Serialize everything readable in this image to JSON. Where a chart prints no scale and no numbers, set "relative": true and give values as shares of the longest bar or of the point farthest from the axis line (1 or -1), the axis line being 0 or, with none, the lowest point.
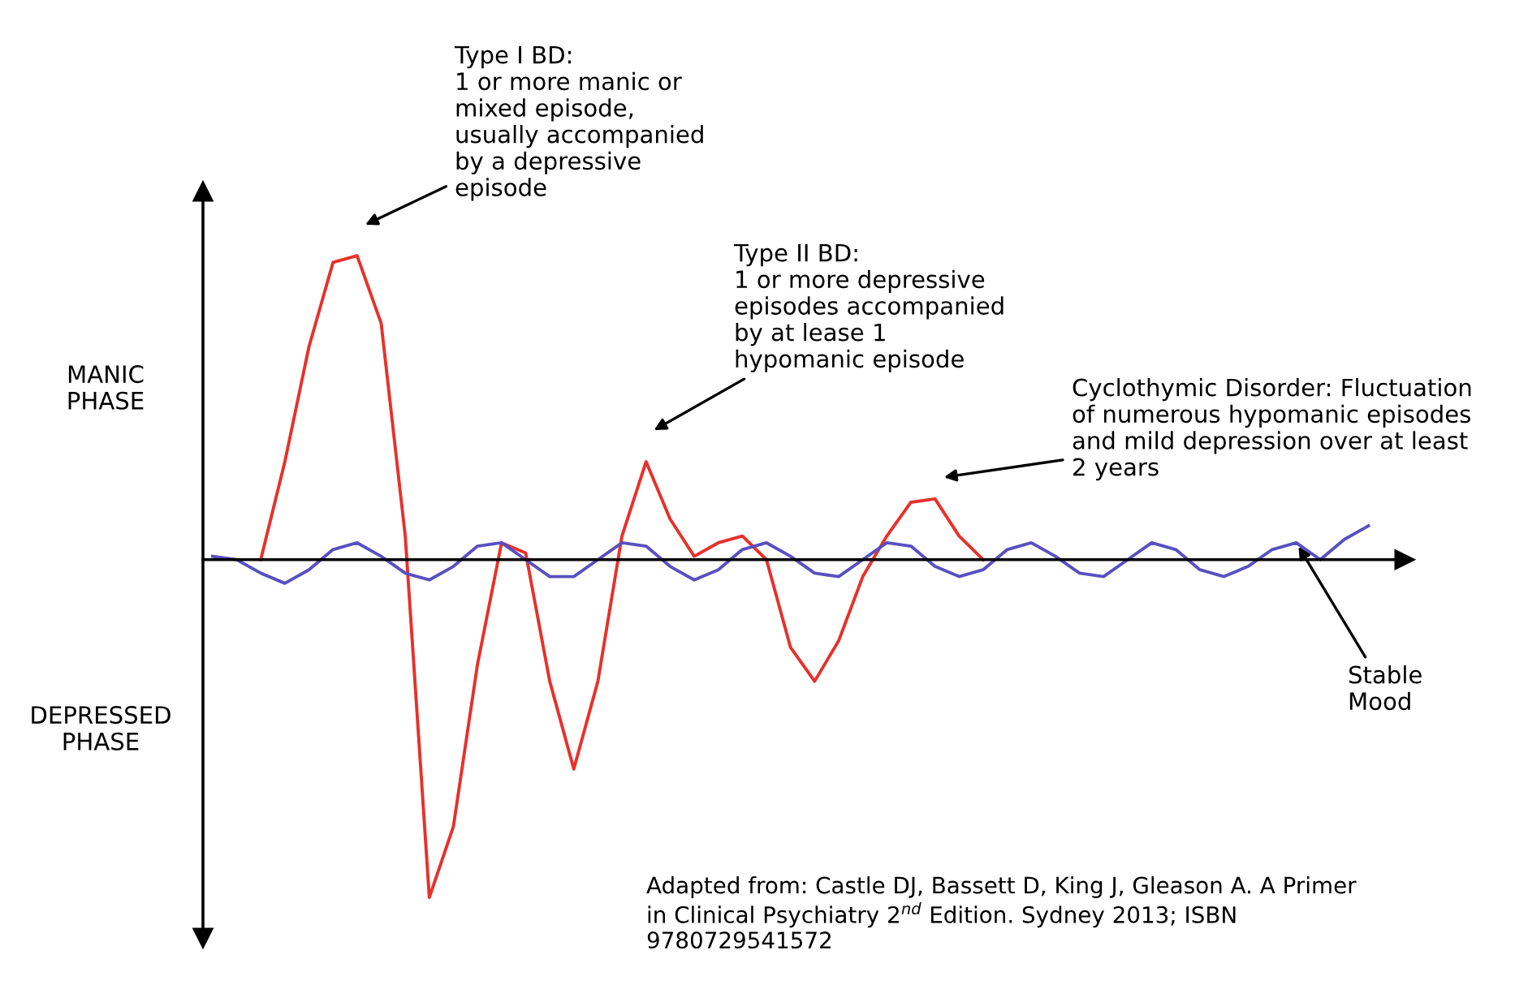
{
  "chart_data": {
    "type": "line",
    "relative": true,
    "grid": false,
    "legend": false,
    "marker": "none",
    "line_style": "solid",
    "categories": [
      null,
      null,
      null,
      null,
      null,
      null,
      null,
      null,
      null,
      null,
      null,
      null,
      null,
      null,
      null,
      null,
      null,
      null,
      null,
      null,
      null,
      null,
      null,
      null,
      null,
      null,
      null,
      null,
      null,
      null,
      null,
      null,
      null,
      null,
      null,
      null,
      null,
      null,
      null,
      null,
      null,
      null,
      null,
      null,
      null,
      null,
      null,
      null,
      null
    ],
    "series": [
      {
        "color": "#e8302a",
        "values": [
          null,
          null,
          0,
          0.29,
          0.63,
          0.88,
          0.9,
          0.7,
          0.07,
          -1.0,
          -0.79,
          -0.31,
          0.05,
          0.02,
          -0.36,
          -0.62,
          -0.36,
          0.07,
          0.29,
          0.12,
          0.01,
          0.05,
          0.07,
          0,
          -0.26,
          -0.36,
          -0.24,
          -0.05,
          0.07,
          0.17,
          0.18,
          0.07,
          0,
          null,
          null,
          null,
          null,
          null,
          null,
          null,
          null,
          null,
          null,
          null,
          null,
          null,
          null,
          null,
          null
        ]
      },
      {
        "color": "#5a4fc0",
        "values": [
          0.01,
          0.0,
          -0.04,
          -0.07,
          -0.03,
          0.03,
          0.05,
          0.01,
          -0.04,
          -0.06,
          -0.02,
          0.04,
          0.05,
          0.0,
          -0.05,
          -0.05,
          0.0,
          0.05,
          0.04,
          -0.02,
          -0.06,
          -0.03,
          0.03,
          0.05,
          0.01,
          -0.04,
          -0.05,
          0.0,
          0.05,
          0.04,
          -0.02,
          -0.05,
          -0.03,
          0.03,
          0.05,
          0.01,
          -0.04,
          -0.05,
          0.0,
          0.05,
          0.03,
          -0.03,
          -0.05,
          -0.02,
          0.03,
          0.05,
          0.0,
          0.06,
          0.1
        ]
      }
    ],
    "annotations": [
      "MANIC\nPHASE",
      "DEPRESSED\nPHASE",
      "Type I BD:\n1 or more manic or\nmixed episode,\nusually accompanied\nby a depressive\nepisode",
      "Type II BD:\n1 or more depressive\nepisodes accompanied\nby at lease 1\nhypomanic episode",
      "Cyclothymic Disorder: Fluctuation\nof numerous hypomanic episodes\nand mild depression over at least\n2 years",
      "Stable\nMood",
      "Adapted from: Castle DJ, Bassett D, King J, Gleason A. A Primer\nin Clinical Psychiatry 2$^{nd}$ Edition. Sydney 2013; ISBN\n9780729541572"
    ]
  }
}
